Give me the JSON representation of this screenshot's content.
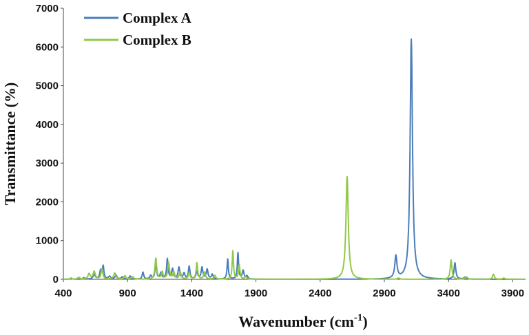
{
  "chart_data": {
    "type": "line",
    "title": "",
    "xlabel": "Wavenumber (cm",
    "xlabel_sup": "-1",
    "xlabel_end": ")",
    "ylabel": "Transmittance (%)",
    "xlim": [
      400,
      4000
    ],
    "ylim": [
      0,
      7000
    ],
    "x_ticks": [
      400,
      900,
      1400,
      1900,
      2400,
      2900,
      3400,
      3900
    ],
    "y_ticks": [
      0,
      1000,
      2000,
      3000,
      4000,
      5000,
      6000,
      7000
    ],
    "grid": false,
    "legend_position": "top-left",
    "series": [
      {
        "name": "Complex A",
        "color": "#4a7ebb",
        "peaks": [
          [
            460,
            30,
            8
          ],
          [
            560,
            40,
            8
          ],
          [
            640,
            120,
            10
          ],
          [
            690,
            220,
            8
          ],
          [
            710,
            330,
            7
          ],
          [
            760,
            70,
            10
          ],
          [
            810,
            110,
            8
          ],
          [
            860,
            60,
            10
          ],
          [
            920,
            80,
            8
          ],
          [
            1020,
            180,
            7
          ],
          [
            1080,
            90,
            8
          ],
          [
            1120,
            420,
            7
          ],
          [
            1160,
            160,
            8
          ],
          [
            1210,
            520,
            7
          ],
          [
            1250,
            260,
            8
          ],
          [
            1300,
            300,
            8
          ],
          [
            1340,
            150,
            8
          ],
          [
            1380,
            330,
            7
          ],
          [
            1440,
            190,
            8
          ],
          [
            1480,
            300,
            8
          ],
          [
            1520,
            250,
            8
          ],
          [
            1560,
            120,
            8
          ],
          [
            1680,
            520,
            6
          ],
          [
            1760,
            680,
            6
          ],
          [
            1800,
            220,
            8
          ],
          [
            1830,
            80,
            8
          ],
          [
            2990,
            580,
            10
          ],
          [
            3110,
            6200,
            11
          ],
          [
            3450,
            420,
            8
          ],
          [
            3530,
            50,
            10
          ]
        ]
      },
      {
        "name": "Complex B",
        "color": "#92c846",
        "peaks": [
          [
            460,
            20,
            8
          ],
          [
            520,
            50,
            10
          ],
          [
            600,
            140,
            10
          ],
          [
            640,
            200,
            10
          ],
          [
            700,
            260,
            8
          ],
          [
            800,
            160,
            10
          ],
          [
            880,
            90,
            8
          ],
          [
            940,
            60,
            10
          ],
          [
            1120,
            540,
            8
          ],
          [
            1170,
            180,
            8
          ],
          [
            1220,
            420,
            8
          ],
          [
            1260,
            180,
            8
          ],
          [
            1310,
            190,
            8
          ],
          [
            1380,
            160,
            8
          ],
          [
            1440,
            420,
            7
          ],
          [
            1500,
            180,
            8
          ],
          [
            1580,
            100,
            8
          ],
          [
            1720,
            730,
            6
          ],
          [
            1770,
            360,
            7
          ],
          [
            1820,
            60,
            8
          ],
          [
            2610,
            2650,
            11
          ],
          [
            3010,
            30,
            10
          ],
          [
            3420,
            500,
            8
          ],
          [
            3540,
            60,
            10
          ],
          [
            3750,
            130,
            8
          ],
          [
            3830,
            30,
            10
          ]
        ]
      }
    ]
  }
}
